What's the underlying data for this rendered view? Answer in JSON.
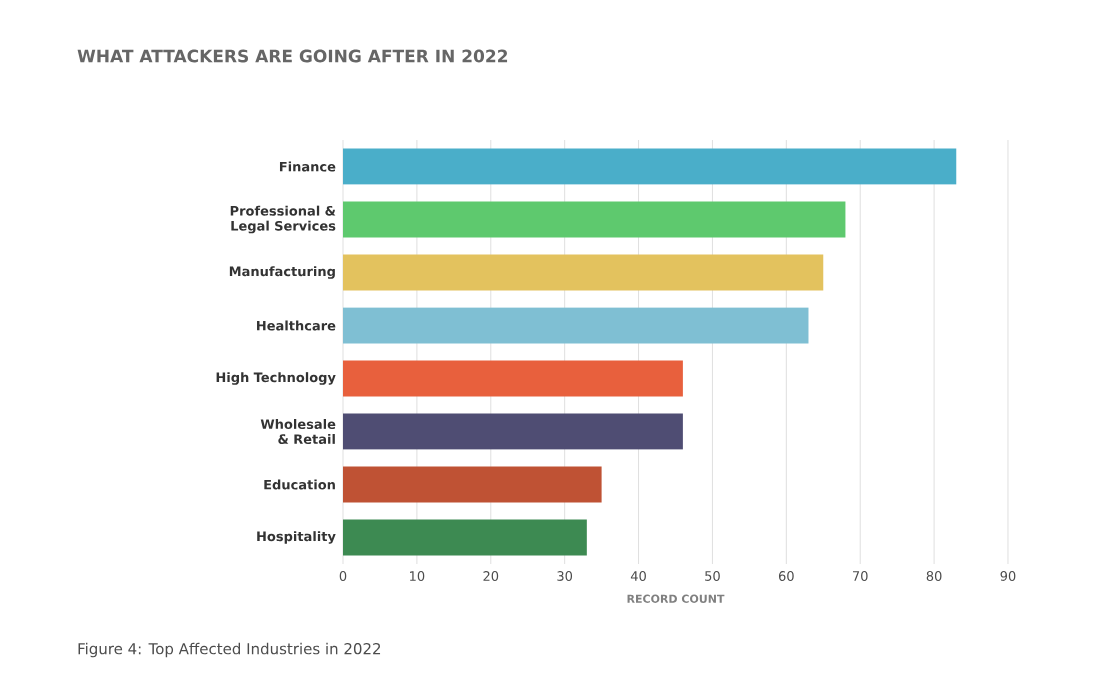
{
  "chart_data": {
    "type": "bar",
    "orientation": "horizontal",
    "title": "WHAT ATTACKERS ARE GOING AFTER IN 2022",
    "categories": [
      "Finance",
      "Professional & Legal Services",
      "Manufacturing",
      "Healthcare",
      "High Technology",
      "Wholesale & Retail",
      "Education",
      "Hospitality"
    ],
    "values": [
      83,
      68,
      65,
      63,
      46,
      46,
      35,
      33
    ],
    "colors": [
      "#4aaec9",
      "#5ec96e",
      "#e3c25e",
      "#7fbfd3",
      "#e8603d",
      "#4f4d73",
      "#bf5234",
      "#3d8a52"
    ],
    "xlim": [
      0,
      90
    ],
    "xticks": [
      0,
      10,
      20,
      30,
      40,
      50,
      60,
      70,
      80,
      90
    ],
    "xlabel": "RECORD COUNT",
    "grid": "x",
    "annotations": [
      "Figure 4: Top Affected Industries in 2022"
    ]
  }
}
